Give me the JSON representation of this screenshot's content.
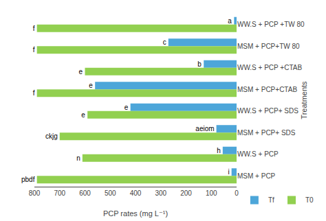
{
  "chart_data": {
    "type": "bar",
    "orientation": "horizontal",
    "categories": [
      "WW.S + PCP +TW 80",
      "MSM + PCP+TW 80",
      "WW.S + PCP +CTAB",
      "MSM + PCP+CTAB",
      "WW.S + PCP+ SDS",
      "MSM + PCP+ SDS",
      "WW.S + PCP",
      "MSM + PCP"
    ],
    "series": [
      {
        "name": "Tf",
        "color": "#4da6d9",
        "values": [
          10,
          270,
          130,
          560,
          420,
          80,
          55,
          20
        ],
        "letters": [
          "a",
          "c",
          "b",
          "e",
          "e",
          "aeiom",
          "h",
          "i"
        ]
      },
      {
        "name": "T0",
        "color": "#92d050",
        "values": [
          790,
          790,
          600,
          790,
          590,
          700,
          610,
          790
        ],
        "letters": [
          "f",
          "f",
          "e",
          "f",
          "e",
          "ckjg",
          "n",
          "pbdf"
        ]
      }
    ],
    "xlabel": "PCP rates (mg L⁻¹)",
    "ylabel": "Treatments",
    "xlim": [
      800,
      0
    ],
    "xticks": [
      800,
      700,
      600,
      500,
      400,
      300,
      200,
      100,
      0
    ],
    "grid": false,
    "legend": "lower right"
  }
}
